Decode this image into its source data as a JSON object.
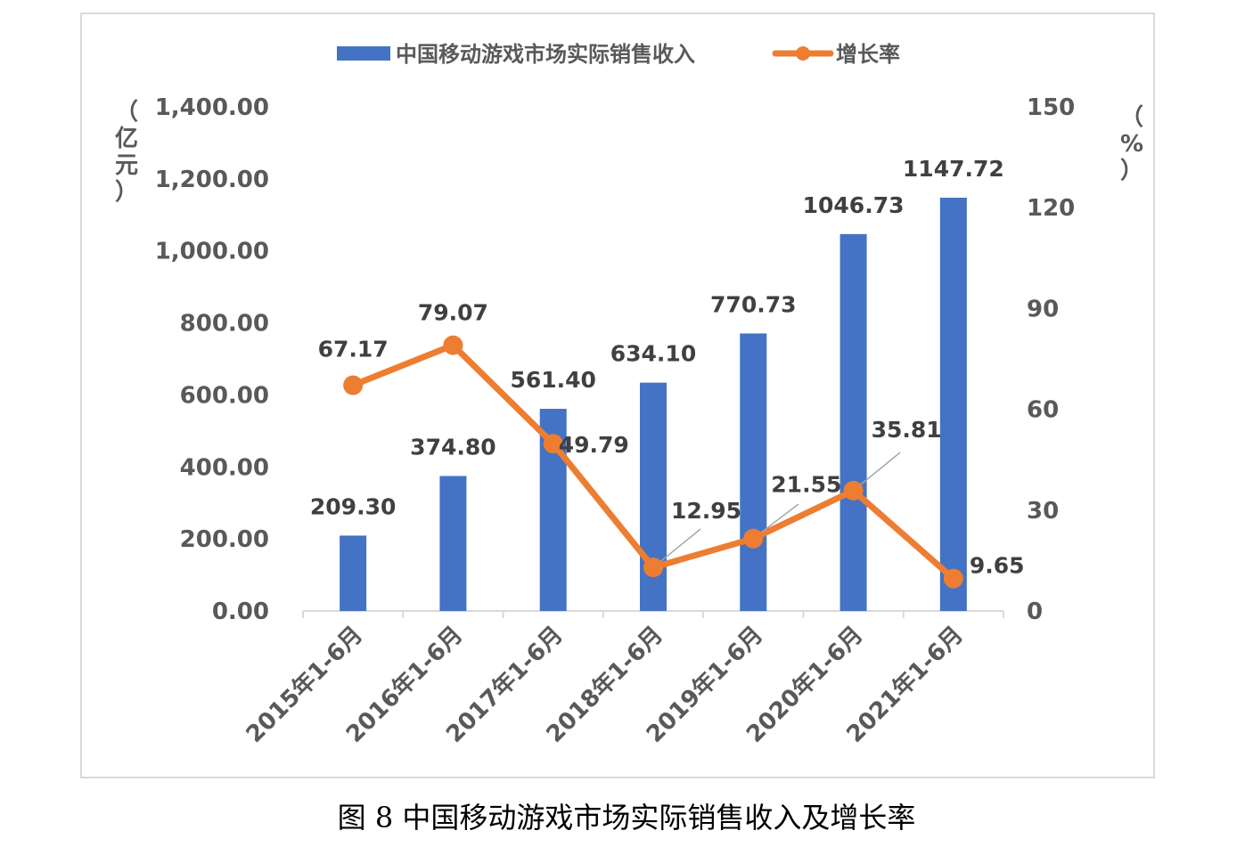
{
  "caption": "图 8  中国移动游戏市场实际销售收入及增长率",
  "chart_data": {
    "type": "bar",
    "categories": [
      "2015年1-6月",
      "2016年1-6月",
      "2017年1-6月",
      "2018年1-6月",
      "2019年1-6月",
      "2020年1-6月",
      "2021年1-6月"
    ],
    "series": [
      {
        "name": "中国移动游戏市场实际销售收入",
        "type": "bar",
        "axis": "left",
        "values": [
          209.3,
          374.8,
          561.4,
          634.1,
          770.73,
          1046.73,
          1147.72
        ],
        "labels": [
          "209.30",
          "374.80",
          "561.40",
          "634.10",
          "770.73",
          "1046.73",
          "1147.72"
        ],
        "color": "#4472c4"
      },
      {
        "name": "增长率",
        "type": "line",
        "axis": "right",
        "values": [
          67.17,
          79.07,
          49.79,
          12.95,
          21.55,
          35.81,
          9.65
        ],
        "labels": [
          "67.17",
          "79.07",
          "49.79",
          "12.95",
          "21.55",
          "35.81",
          "9.65"
        ],
        "color": "#ed7d31"
      }
    ],
    "y_left": {
      "unit_label": [
        "（",
        "亿",
        "元",
        "）"
      ],
      "range": [
        0,
        1400
      ],
      "ticks": [
        "0.00",
        "200.00",
        "400.00",
        "600.00",
        "800.00",
        "1,000.00",
        "1,200.00",
        "1,400.00"
      ]
    },
    "y_right": {
      "unit_label": [
        "（",
        "%",
        "）"
      ],
      "range": [
        0,
        150
      ],
      "ticks": [
        "0",
        "30",
        "60",
        "90",
        "120",
        "150"
      ]
    },
    "legend": "top-center",
    "grid": false
  }
}
